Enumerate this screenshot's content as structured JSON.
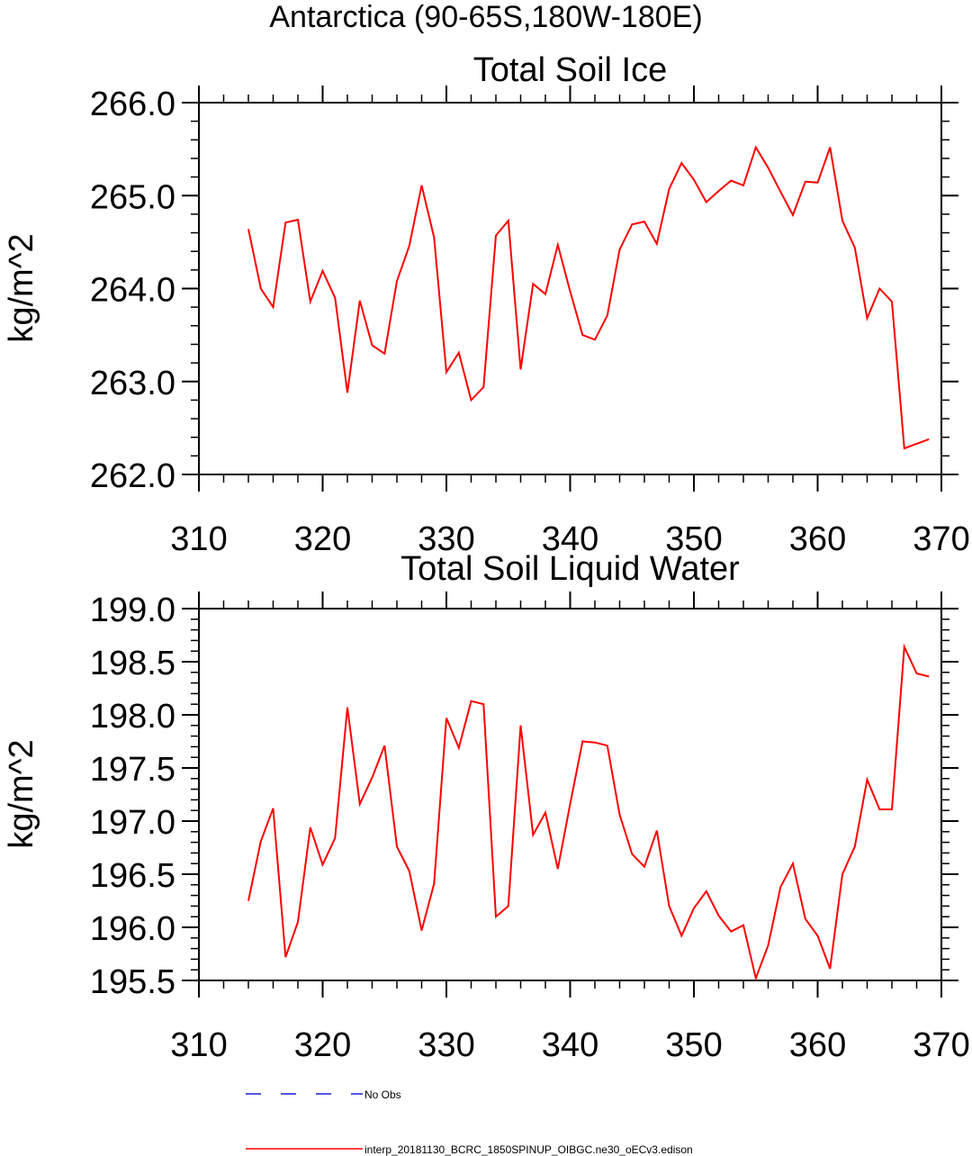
{
  "figure_title": "Antarctica (90-65S,180W-180E)",
  "legend": {
    "entries": [
      {
        "label": "No Obs",
        "color": "#1c1cd0",
        "style": "dashed"
      },
      {
        "label": "interp_20181130_BCRC_1850SPINUP_OIBGC.ne30_oECv3.edison",
        "color": "#ff0000",
        "style": "solid"
      }
    ]
  },
  "chart_data": [
    {
      "type": "line",
      "title": "Total Soil Ice",
      "xlabel": "",
      "ylabel": "kg/m^2",
      "xlim": [
        310,
        370
      ],
      "ylim": [
        262.0,
        266.0
      ],
      "x_ticks": [
        310,
        320,
        330,
        340,
        350,
        360,
        370
      ],
      "x_tick_labels": [
        "310",
        "320",
        "330",
        "340",
        "350",
        "360",
        "370"
      ],
      "y_ticks": [
        262.0,
        263.0,
        264.0,
        265.0,
        266.0
      ],
      "y_tick_labels": [
        "262.0",
        "263.0",
        "264.0",
        "265.0",
        "266.0"
      ],
      "series": [
        {
          "name": "interp_20181130_BCRC_1850SPINUP_OIBGC.ne30_oECv3.edison",
          "color": "#ff0000",
          "x": [
            314,
            315,
            316,
            317,
            318,
            319,
            320,
            321,
            322,
            323,
            324,
            325,
            326,
            327,
            328,
            329,
            330,
            331,
            332,
            333,
            334,
            335,
            336,
            337,
            338,
            339,
            340,
            341,
            342,
            343,
            344,
            345,
            346,
            347,
            348,
            349,
            350,
            351,
            352,
            353,
            354,
            355,
            356,
            357,
            358,
            359,
            360,
            361,
            362,
            363,
            364,
            365,
            366,
            367,
            368,
            369
          ],
          "values": [
            264.64,
            264.0,
            263.8,
            264.71,
            264.74,
            263.86,
            264.19,
            263.9,
            262.88,
            263.87,
            263.39,
            263.3,
            264.08,
            264.46,
            265.11,
            264.55,
            263.1,
            263.31,
            262.8,
            262.94,
            264.57,
            264.73,
            263.13,
            264.05,
            263.94,
            264.47,
            263.97,
            263.5,
            263.45,
            263.71,
            264.42,
            264.69,
            264.72,
            264.48,
            265.07,
            265.35,
            265.17,
            264.93,
            265.05,
            265.16,
            265.11,
            265.52,
            265.3,
            265.04,
            264.79,
            265.15,
            265.14,
            265.52,
            264.73,
            264.44,
            263.68,
            264.0,
            263.86,
            262.28,
            262.33,
            262.38
          ]
        }
      ]
    },
    {
      "type": "line",
      "title": "Total Soil Liquid Water",
      "xlabel": "",
      "ylabel": "kg/m^2",
      "xlim": [
        310,
        370
      ],
      "ylim": [
        195.5,
        199.0
      ],
      "x_ticks": [
        310,
        320,
        330,
        340,
        350,
        360,
        370
      ],
      "x_tick_labels": [
        "310",
        "320",
        "330",
        "340",
        "350",
        "360",
        "370"
      ],
      "y_ticks": [
        195.5,
        196.0,
        196.5,
        197.0,
        197.5,
        198.0,
        198.5,
        199.0
      ],
      "y_tick_labels": [
        "195.5",
        "196.0",
        "196.5",
        "197.0",
        "197.5",
        "198.0",
        "198.5",
        "199.0"
      ],
      "series": [
        {
          "name": "interp_20181130_BCRC_1850SPINUP_OIBGC.ne30_oECv3.edison",
          "color": "#ff0000",
          "x": [
            314,
            315,
            316,
            317,
            318,
            319,
            320,
            321,
            322,
            323,
            324,
            325,
            326,
            327,
            328,
            329,
            330,
            331,
            332,
            333,
            334,
            335,
            336,
            337,
            338,
            339,
            340,
            341,
            342,
            343,
            344,
            345,
            346,
            347,
            348,
            349,
            350,
            351,
            352,
            353,
            354,
            355,
            356,
            357,
            358,
            359,
            360,
            361,
            362,
            363,
            364,
            365,
            366,
            367,
            368,
            369
          ],
          "values": [
            196.25,
            196.81,
            197.12,
            195.72,
            196.05,
            196.94,
            196.59,
            196.84,
            198.07,
            197.16,
            197.41,
            197.71,
            196.76,
            196.53,
            195.97,
            196.41,
            197.97,
            197.69,
            198.13,
            198.1,
            196.1,
            196.2,
            197.9,
            196.87,
            197.08,
            196.55,
            197.16,
            197.75,
            197.74,
            197.71,
            197.06,
            196.69,
            196.57,
            196.91,
            196.2,
            195.92,
            196.18,
            196.34,
            196.11,
            195.96,
            196.02,
            195.52,
            195.83,
            196.38,
            196.6,
            196.08,
            195.92,
            195.61,
            196.5,
            196.76,
            197.39,
            197.11,
            197.11,
            198.64,
            198.39,
            198.36
          ]
        }
      ]
    }
  ]
}
